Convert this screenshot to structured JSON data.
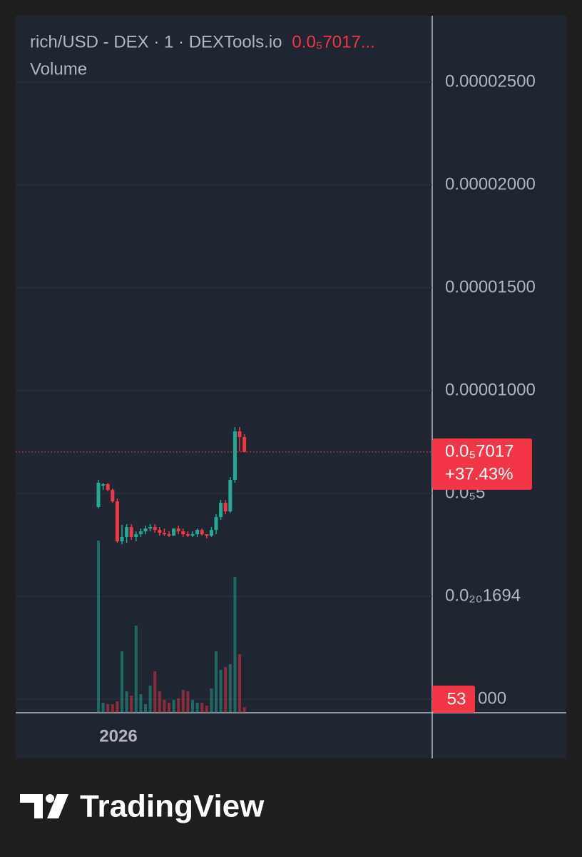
{
  "chart_data": {
    "type": "candlestick",
    "title": "rich/USD - DEX · 1 · DEXTools.io",
    "title_value": "0.0₅7017...",
    "volume_label": "Volume",
    "x_tick_label": "2026",
    "up_color": "#22ab94",
    "down_color": "#f23645",
    "ylim": [
      -5.66e-06,
      2.816e-05
    ],
    "yticks": [
      {
        "value": 2.5e-05,
        "label": "0.00002500"
      },
      {
        "value": 2e-05,
        "label": "0.00002000"
      },
      {
        "value": 1.5e-05,
        "label": "0.00001500"
      },
      {
        "value": 1e-05,
        "label": "0.00001000"
      },
      {
        "value": 5e-06,
        "label": "0.0₅5"
      },
      {
        "value": 0,
        "label": "0.0₂₀1694"
      },
      {
        "value": -5e-06,
        "label": "000"
      }
    ],
    "grid": true,
    "open": [
      4.34e-06,
      5.382e-06,
      5.452e-06,
      5.174e-06,
      4.618e-06,
      2.674e-06,
      2.882e-06,
      3.368e-06,
      2.882e-06,
      3.021e-06,
      3.16e-06,
      3.299e-06,
      3.368e-06,
      3.229e-06,
      3.09e-06,
      3.021e-06,
      2.951e-06,
      3.299e-06,
      3.16e-06,
      3.021e-06,
      2.951e-06,
      3.021e-06,
      3.229e-06,
      3.021e-06,
      2.951e-06,
      3.229e-06,
      3.854e-06,
      4.549e-06,
      4.132e-06,
      5.66e-06,
      8.021e-06,
      7.743e-06
    ],
    "high": [
      5.66e-06,
      5.521e-06,
      5.521e-06,
      5.243e-06,
      4.757e-06,
      3.472e-06,
      3.507e-06,
      3.507e-06,
      3.16e-06,
      3.299e-06,
      3.437e-06,
      3.507e-06,
      3.507e-06,
      3.368e-06,
      3.299e-06,
      3.16e-06,
      3.299e-06,
      3.437e-06,
      3.299e-06,
      3.16e-06,
      3.16e-06,
      3.299e-06,
      3.299e-06,
      3.021e-06,
      3.368e-06,
      3.993e-06,
      4.687e-06,
      4.687e-06,
      5.799e-06,
      8.229e-06,
      8.229e-06,
      7.882e-06
    ],
    "low": [
      4.271e-06,
      5.174e-06,
      5.104e-06,
      4.549e-06,
      2.604e-06,
      2.535e-06,
      2.604e-06,
      2.743e-06,
      2.674e-06,
      2.882e-06,
      3.021e-06,
      3.16e-06,
      3.09e-06,
      2.951e-06,
      2.951e-06,
      2.882e-06,
      2.951e-06,
      3.021e-06,
      2.882e-06,
      2.882e-06,
      2.882e-06,
      2.882e-06,
      2.951e-06,
      2.813e-06,
      2.882e-06,
      3.021e-06,
      3.715e-06,
      3.993e-06,
      4.062e-06,
      5.521e-06,
      7.049e-06,
      7.049e-06
    ],
    "close": [
      5.521e-06,
      5.452e-06,
      5.174e-06,
      4.618e-06,
      2.674e-06,
      2.882e-06,
      3.368e-06,
      2.882e-06,
      3.021e-06,
      3.16e-06,
      3.299e-06,
      3.368e-06,
      3.229e-06,
      3.09e-06,
      3.021e-06,
      2.951e-06,
      3.299e-06,
      3.16e-06,
      3.021e-06,
      2.951e-06,
      3.021e-06,
      3.229e-06,
      3.021e-06,
      2.951e-06,
      3.229e-06,
      3.854e-06,
      4.549e-06,
      4.132e-06,
      5.66e-06,
      8.021e-06,
      7.743e-06,
      7.017e-06
    ],
    "volume": [
      1597,
      93,
      80,
      80,
      106,
      570,
      199,
      159,
      808,
      172,
      80,
      252,
      384,
      199,
      119,
      93,
      119,
      133,
      212,
      199,
      119,
      93,
      93,
      66,
      225,
      570,
      398,
      424,
      451,
      1259,
      543,
      53
    ],
    "last_price": {
      "value": 7.017e-06,
      "label": "0.0₅7017"
    },
    "change": {
      "value": 37.43,
      "label": "+37.43%"
    },
    "last_volume": 53
  },
  "footer": {
    "brand": "TradingView"
  }
}
